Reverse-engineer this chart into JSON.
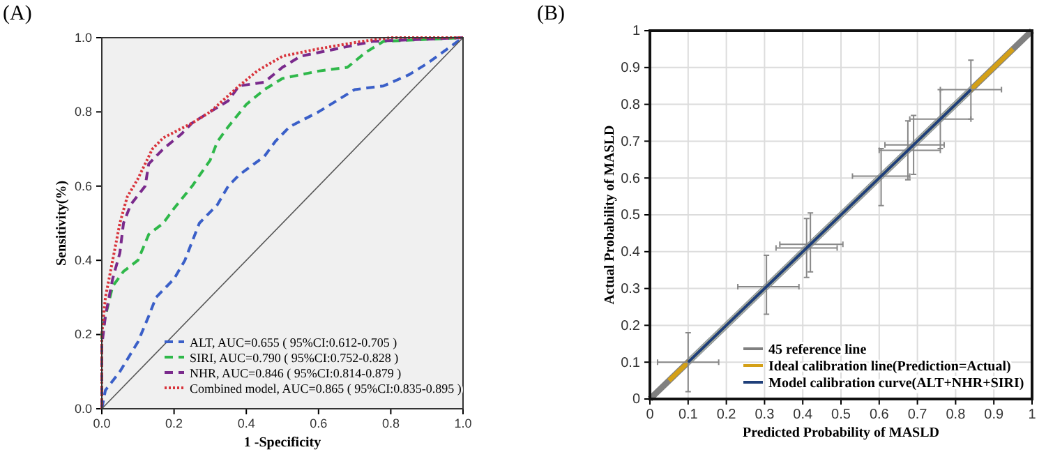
{
  "chart_data": [
    {
      "type": "line",
      "title": "(A)",
      "xlabel": "1 -Specificity",
      "ylabel": "Sensitivity(%)",
      "xlim": [
        0,
        1
      ],
      "ylim": [
        0,
        1
      ],
      "xticks": [
        {
          "value": 0,
          "label": "0.0"
        },
        {
          "value": 0.2,
          "label": "0.2"
        },
        {
          "value": 0.4,
          "label": "0.4"
        },
        {
          "value": 0.6,
          "label": "0.6"
        },
        {
          "value": 0.8,
          "label": "0.8"
        },
        {
          "value": 1,
          "label": "1.0"
        }
      ],
      "yticks": [
        {
          "value": 0,
          "label": "0.0"
        },
        {
          "value": 0.2,
          "label": "0.2"
        },
        {
          "value": 0.4,
          "label": "0.4"
        },
        {
          "value": 0.6,
          "label": "0.6"
        },
        {
          "value": 0.8,
          "label": "0.8"
        },
        {
          "value": 1,
          "label": "1.0"
        }
      ],
      "grid": false,
      "legend": "bottom right",
      "series": [
        {
          "name": "ALT, AUC=0.655 ( 95%CI:0.612-0.705 )",
          "color": "#3a5fc8",
          "line_style": "dashed",
          "x": [
            0,
            0.01,
            0.05,
            0.1,
            0.13,
            0.15,
            0.2,
            0.23,
            0.25,
            0.27,
            0.32,
            0.35,
            0.38,
            0.45,
            0.48,
            0.52,
            0.6,
            0.7,
            0.78,
            0.85,
            0.9,
            1
          ],
          "values": [
            0,
            0.05,
            0.1,
            0.18,
            0.25,
            0.3,
            0.35,
            0.4,
            0.45,
            0.5,
            0.55,
            0.6,
            0.63,
            0.68,
            0.72,
            0.76,
            0.8,
            0.86,
            0.87,
            0.9,
            0.93,
            1
          ]
        },
        {
          "name": "SIRI, AUC=0.790 ( 95%CI:0.752-0.828  )",
          "color": "#2fb84a",
          "line_style": "dashed",
          "x": [
            0,
            0,
            0.01,
            0.03,
            0.06,
            0.1,
            0.13,
            0.17,
            0.2,
            0.25,
            0.3,
            0.32,
            0.35,
            0.4,
            0.45,
            0.5,
            0.6,
            0.68,
            0.73,
            0.78,
            1
          ],
          "values": [
            0,
            0.2,
            0.25,
            0.33,
            0.37,
            0.4,
            0.47,
            0.5,
            0.54,
            0.6,
            0.67,
            0.72,
            0.76,
            0.82,
            0.86,
            0.89,
            0.91,
            0.92,
            0.96,
            0.99,
            1
          ]
        },
        {
          "name": "NHR, AUC=0.846 ( 95%CI:0.814-0.879 )",
          "color": "#7a2a8c",
          "line_style": "dashed",
          "x": [
            0,
            0,
            0.01,
            0.03,
            0.05,
            0.06,
            0.08,
            0.12,
            0.13,
            0.17,
            0.22,
            0.25,
            0.3,
            0.35,
            0.38,
            0.45,
            0.5,
            0.55,
            0.65,
            0.75,
            1
          ],
          "values": [
            0,
            0.17,
            0.25,
            0.35,
            0.42,
            0.5,
            0.55,
            0.6,
            0.66,
            0.7,
            0.74,
            0.77,
            0.8,
            0.83,
            0.87,
            0.88,
            0.92,
            0.95,
            0.97,
            0.99,
            1
          ]
        },
        {
          "name": "Combined model, AUC=0.865 ( 95%CI:0.835-0.895 )",
          "color": "#d8333b",
          "line_style": "dotted",
          "x": [
            0,
            0,
            0.01,
            0.03,
            0.05,
            0.07,
            0.1,
            0.14,
            0.17,
            0.25,
            0.3,
            0.38,
            0.43,
            0.5,
            0.6,
            0.72,
            0.8,
            1
          ],
          "values": [
            0,
            0.2,
            0.3,
            0.4,
            0.5,
            0.57,
            0.62,
            0.7,
            0.73,
            0.77,
            0.8,
            0.87,
            0.91,
            0.95,
            0.97,
            0.99,
            1,
            1
          ]
        },
        {
          "color": "#555555",
          "line_style": "solid",
          "x": [
            0,
            1
          ],
          "values": [
            0,
            1
          ]
        }
      ]
    },
    {
      "type": "line",
      "title": "(B)",
      "xlabel": "Predicted Probability of MASLD",
      "ylabel": "Actual Probability of MASLD",
      "xlim": [
        0,
        1
      ],
      "ylim": [
        0,
        1
      ],
      "xticks": [
        0,
        0.1,
        0.2,
        0.3,
        0.4,
        0.5,
        0.6,
        0.7,
        0.8,
        0.9,
        1
      ],
      "yticks": [
        0,
        0.1,
        0.2,
        0.3,
        0.4,
        0.5,
        0.6,
        0.7,
        0.8,
        0.9,
        1
      ],
      "grid": true,
      "legend": "bottom right",
      "series": [
        {
          "name": "45 reference line",
          "color": "#808080",
          "line_style": "solid",
          "x": [
            0,
            1
          ],
          "values": [
            0,
            1
          ]
        },
        {
          "name": "Ideal calibration line(Prediction=Actual)",
          "color": "#d4a017",
          "line_style": "solid",
          "x": [
            0.05,
            0.95
          ],
          "values": [
            0.05,
            0.95
          ]
        },
        {
          "name": "Model calibration curve(ALT+NHR+SIRI)",
          "color": "#1f3f7a",
          "line_style": "solid",
          "x": [
            0.1,
            0.305,
            0.41,
            0.42,
            0.605,
            0.675,
            0.69,
            0.76,
            0.84
          ],
          "values": [
            0.1,
            0.305,
            0.41,
            0.42,
            0.605,
            0.675,
            0.69,
            0.76,
            0.84
          ],
          "lower": [
            0.09,
            0.295,
            0.4,
            0.41,
            0.595,
            0.665,
            0.68,
            0.75,
            0.83
          ],
          "upper": [
            0.11,
            0.315,
            0.42,
            0.43,
            0.615,
            0.685,
            0.7,
            0.77,
            0.85
          ],
          "errors": [
            [
              0.02,
              0.18
            ],
            [
              0.23,
              0.39
            ],
            [
              0.33,
              0.49
            ],
            [
              0.345,
              0.505
            ],
            [
              0.525,
              0.68
            ],
            [
              0.595,
              0.755
            ],
            [
              0.61,
              0.77
            ],
            [
              0.68,
              0.84
            ],
            [
              0.76,
              0.92
            ]
          ],
          "xerrors": [
            [
              0.02,
              0.18
            ],
            [
              0.23,
              0.39
            ],
            [
              0.33,
              0.49
            ],
            [
              0.34,
              0.505
            ],
            [
              0.53,
              0.68
            ],
            [
              0.6,
              0.76
            ],
            [
              0.615,
              0.77
            ],
            [
              0.68,
              0.84
            ],
            [
              0.76,
              0.92
            ]
          ]
        }
      ]
    }
  ]
}
